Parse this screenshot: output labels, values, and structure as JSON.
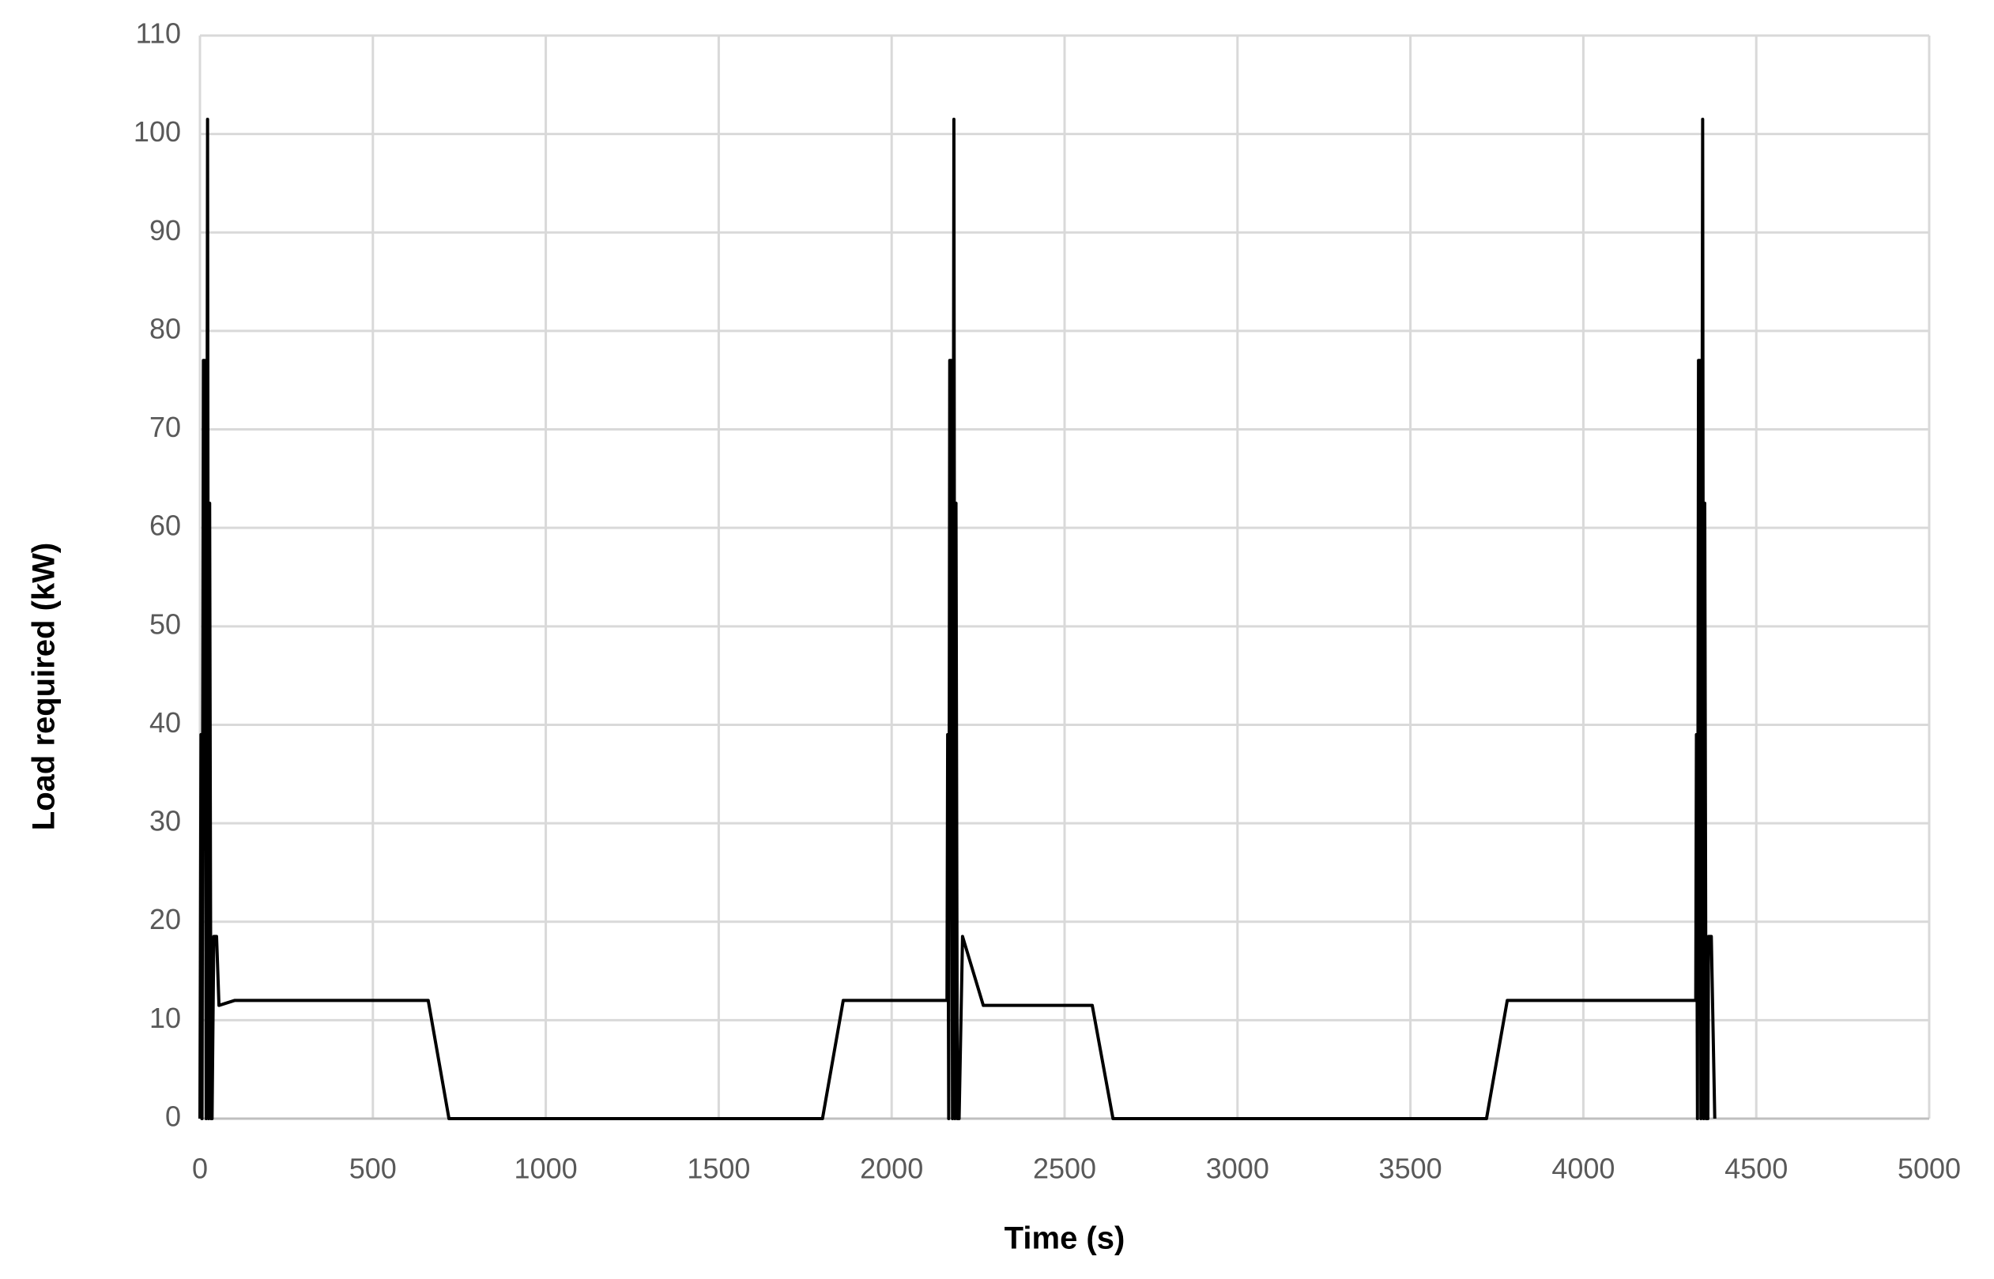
{
  "chart_data": {
    "type": "line",
    "x_label": "Time (s)",
    "y_label": "Load required (kW)",
    "xlim": [
      0,
      5000
    ],
    "xticks": [
      0,
      500,
      1000,
      1500,
      2000,
      2500,
      3000,
      3500,
      4000,
      4500,
      5000
    ],
    "ylim": [
      0,
      110
    ],
    "yticks": [
      0,
      10,
      20,
      30,
      40,
      50,
      60,
      70,
      80,
      90,
      100,
      110
    ],
    "grid": true,
    "series": [
      {
        "color": "#000000",
        "x": [
          0,
          3,
          6,
          10,
          14,
          18,
          22,
          25,
          28,
          32,
          35,
          40,
          48,
          55,
          100,
          660,
          720,
          1800,
          1860,
          2160,
          2162,
          2165,
          2168,
          2172,
          2176,
          2180,
          2183,
          2186,
          2190,
          2195,
          2205,
          2265,
          2580,
          2640,
          3720,
          3780,
          4325,
          4327,
          4330,
          4333,
          4337,
          4340,
          4345,
          4348,
          4351,
          4355,
          4360,
          4362,
          4370,
          4380
        ],
        "values": [
          0,
          39,
          0,
          77,
          77,
          0,
          101.5,
          0,
          62.5,
          0,
          0,
          18.5,
          18.5,
          11.5,
          12,
          12,
          0,
          0,
          12,
          12,
          39,
          0,
          77,
          77,
          0,
          101.5,
          0,
          62.5,
          0,
          0,
          18.5,
          11.5,
          11.5,
          0,
          0,
          12,
          12,
          39,
          0,
          77,
          77,
          0,
          101.5,
          0,
          62.5,
          0,
          0,
          18.5,
          18.5,
          0
        ]
      }
    ]
  }
}
